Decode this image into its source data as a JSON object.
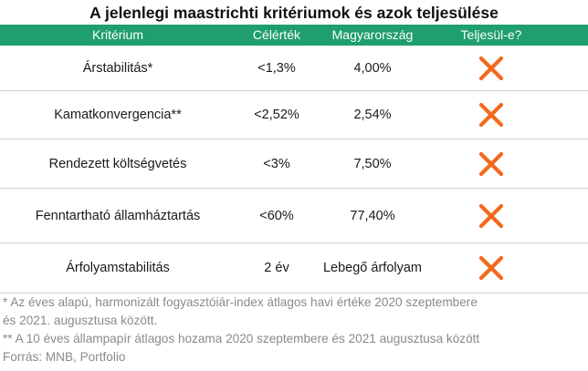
{
  "title": "A jelenlegi maastrichti kritériumok és azok teljesülése",
  "header": {
    "col1": "Kritérium",
    "col2": "Célérték",
    "col3": "Magyarország",
    "col4": "Teljesül-e?"
  },
  "rows": [
    {
      "criterion": "Árstabilitás*",
      "target": "<1,3%",
      "hungary": "4,00%",
      "met_icon": "x-mark-icon"
    },
    {
      "criterion": "Kamatkonvergencia**",
      "target": "<2,52%",
      "hungary": "2,54%",
      "met_icon": "x-mark-icon"
    },
    {
      "criterion": "Rendezett költségvetés",
      "target": "<3%",
      "hungary": "7,50%",
      "met_icon": "x-mark-icon"
    },
    {
      "criterion": "Fenntartható államháztartás",
      "target": "<60%",
      "hungary": "77,40%",
      "met_icon": "x-mark-icon"
    },
    {
      "criterion": "Árfolyamstabilitás",
      "target": "2 év",
      "hungary": "Lebegő árfolyam",
      "met_icon": "x-mark-icon"
    }
  ],
  "colors": {
    "header_bg": "#1f9e6e",
    "x_mark": "#f26a1b",
    "note_text": "#8a8a8a"
  },
  "notes": {
    "line1": "*  Az éves alapú, harmonizált fogyasztóiár-index átlagos havi értéke 2020 szeptembere",
    "line2": "és 2021. augusztusa között.",
    "line3": "** A 10 éves állampapír átlagos hozama 2020 szeptembere és 2021 augusztusa között",
    "source": "Forrás: MNB, Portfolio"
  }
}
